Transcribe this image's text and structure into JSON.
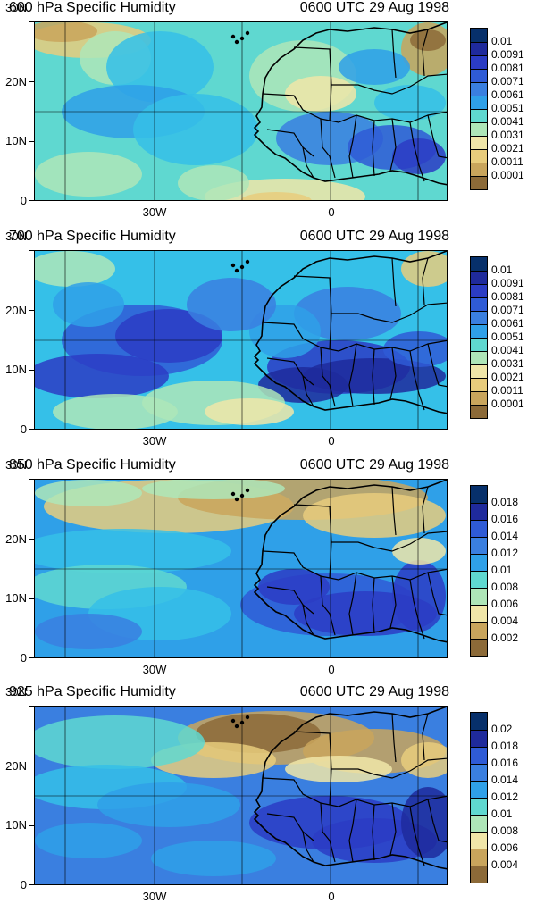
{
  "panels": [
    {
      "title": "600 hPa Specific Humidity",
      "time": "0600 UTC 29 Aug 1998",
      "y_ticks": [
        "30N",
        "20N",
        "10N",
        "0"
      ],
      "x_ticks": [
        "30W",
        "0"
      ],
      "colorbar_labels": [
        "0.01",
        "0.0091",
        "0.0081",
        "0.0071",
        "0.0061",
        "0.0051",
        "0.0041",
        "0.0031",
        "0.0021",
        "0.0011",
        "0.0001"
      ],
      "colorbar_colors": [
        "#07306b",
        "#1f2a9c",
        "#2b3cc4",
        "#2f5bd6",
        "#3a7fe0",
        "#2fa0e8",
        "#35c0e8",
        "#5fd8d0",
        "#aee6b8",
        "#f0e6a8",
        "#e8cc7c",
        "#c9a55c",
        "#8c6a38"
      ]
    },
    {
      "title": "700 hPa Specific Humidity",
      "time": "0600 UTC 29 Aug 1998",
      "y_ticks": [
        "30N",
        "20N",
        "10N",
        "0"
      ],
      "x_ticks": [
        "30W",
        "0"
      ],
      "colorbar_labels": [
        "0.01",
        "0.0091",
        "0.0081",
        "0.0071",
        "0.0061",
        "0.0051",
        "0.0041",
        "0.0031",
        "0.0021",
        "0.0011",
        "0.0001"
      ],
      "colorbar_colors": [
        "#07306b",
        "#1f2a9c",
        "#2b3cc4",
        "#2f5bd6",
        "#3a7fe0",
        "#2fa0e8",
        "#35c0e8",
        "#5fd8d0",
        "#aee6b8",
        "#f0e6a8",
        "#e8cc7c",
        "#c9a55c",
        "#8c6a38"
      ]
    },
    {
      "title": "850 hPa Specific Humidity",
      "time": "0600 UTC 29 Aug 1998",
      "y_ticks": [
        "30N",
        "20N",
        "10N",
        "0"
      ],
      "x_ticks": [
        "30W",
        "0"
      ],
      "colorbar_labels": [
        "0.018",
        "0.016",
        "0.014",
        "0.012",
        "0.01",
        "0.008",
        "0.006",
        "0.004",
        "0.002"
      ],
      "colorbar_colors": [
        "#07306b",
        "#1f2a9c",
        "#2b3cc4",
        "#2f5bd6",
        "#3a7fe0",
        "#2fa0e8",
        "#35c0e8",
        "#5fd8d0",
        "#aee6b8",
        "#f0e6a8",
        "#e8cc7c",
        "#c9a55c",
        "#8c6a38"
      ]
    },
    {
      "title": "925 hPa Specific Humidity",
      "time": "0600 UTC 29 Aug 1998",
      "y_ticks": [
        "30N",
        "20N",
        "10N",
        "0"
      ],
      "x_ticks": [
        "30W",
        "0"
      ],
      "colorbar_labels": [
        "0.02",
        "0.018",
        "0.016",
        "0.014",
        "0.012",
        "0.01",
        "0.008",
        "0.006",
        "0.004"
      ],
      "colorbar_colors": [
        "#07306b",
        "#1f2a9c",
        "#2b3cc4",
        "#2f5bd6",
        "#3a7fe0",
        "#2fa0e8",
        "#35c0e8",
        "#5fd8d0",
        "#aee6b8",
        "#f0e6a8",
        "#e8cc7c",
        "#c9a55c",
        "#8c6a38"
      ]
    }
  ]
}
